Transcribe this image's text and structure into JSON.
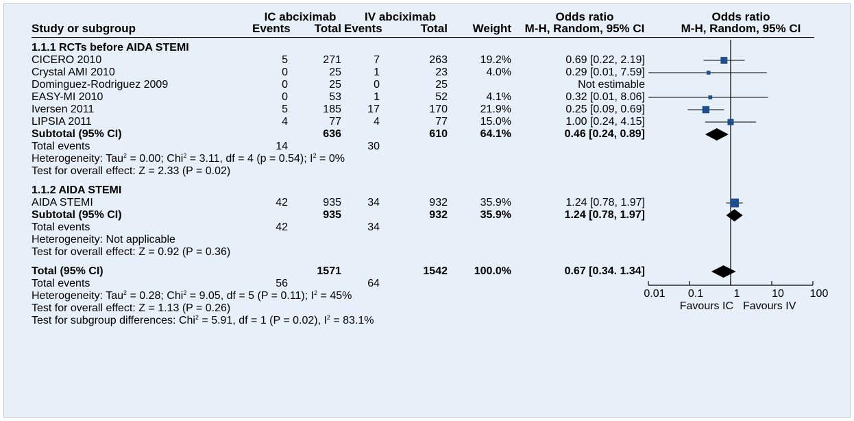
{
  "header": {
    "col_study": "Study or subgroup",
    "group_ic": "IC abciximab",
    "group_iv": "IV abciximab",
    "events": "Events",
    "total": "Total",
    "weight": "Weight",
    "or_num_title": "Odds ratio",
    "or_num_method": "M-H, Random, 95% CI",
    "or_plot_title": "Odds ratio",
    "or_plot_method": "M-H, Random, 95% CI"
  },
  "subgroups": [
    {
      "title": "1.1.1 RCTs before AIDA STEMI",
      "studies": [
        {
          "name": "CICERO 2010",
          "ic_events": "5",
          "ic_total": "271",
          "iv_events": "7",
          "iv_total": "263",
          "weight": "19.2%",
          "ci_text": "0.69 [0.22, 2.19]"
        },
        {
          "name": "Crystal AMI 2010",
          "ic_events": "0",
          "ic_total": "25",
          "iv_events": "1",
          "iv_total": "23",
          "weight": "4.0%",
          "ci_text": "0.29 [0.01, 7.59]"
        },
        {
          "name": "Dominguez-Rodriguez 2009",
          "ic_events": "0",
          "ic_total": "25",
          "iv_events": "0",
          "iv_total": "25",
          "weight": "",
          "ci_text": "Not estimable"
        },
        {
          "name": "EASY-MI 2010",
          "ic_events": "0",
          "ic_total": "53",
          "iv_events": "1",
          "iv_total": "52",
          "weight": "4.1%",
          "ci_text": "0.32 [0.01, 8.06]"
        },
        {
          "name": "Iversen 2011",
          "ic_events": "5",
          "ic_total": "185",
          "iv_events": "17",
          "iv_total": "170",
          "weight": "21.9%",
          "ci_text": "0.25 [0.09, 0.69]"
        },
        {
          "name": "LIPSIA 2011",
          "ic_events": "4",
          "ic_total": "77",
          "iv_events": "4",
          "iv_total": "77",
          "weight": "15.0%",
          "ci_text": "1.00 [0.24, 4.15]"
        }
      ],
      "subtotal": {
        "label": "Subtotal (95% CI)",
        "ic_total": "636",
        "iv_total": "610",
        "weight": "64.1%",
        "ci_text": "0.46 [0.24, 0.89]"
      },
      "total_events": {
        "label": "Total events",
        "ic": "14",
        "iv": "30"
      },
      "heterogeneity": {
        "pre": "Heterogeneity: Tau",
        "tau": "2",
        "mid1": " = 0.00; Chi",
        "chi": "2",
        "mid2": " = 3.11, df = 4 (p = 0.54); I",
        "i": "2",
        "post": " = 0%"
      },
      "overall_effect": "Test for overall effect: Z = 2.33 (P = 0.02)"
    },
    {
      "title": "1.1.2 AIDA STEMI",
      "studies": [
        {
          "name": "AIDA STEMI",
          "ic_events": "42",
          "ic_total": "935",
          "iv_events": "34",
          "iv_total": "932",
          "weight": "35.9%",
          "ci_text": "1.24 [0.78, 1.97]"
        }
      ],
      "subtotal": {
        "label": "Subtotal (95% CI)",
        "ic_total": "935",
        "iv_total": "932",
        "weight": "35.9%",
        "ci_text": "1.24 [0.78, 1.97]"
      },
      "total_events": {
        "label": "Total events",
        "ic": "42",
        "iv": "34"
      },
      "heterogeneity_text": "Heterogeneity: Not applicable",
      "overall_effect": "Test for overall effect: Z = 0.92 (P = 0.36)"
    }
  ],
  "total": {
    "label": "Total (95% CI)",
    "ic_total": "1571",
    "iv_total": "1542",
    "weight": "100.0%",
    "ci_text": "0.67 [0.34. 1.34]",
    "total_events": {
      "label": "Total events",
      "ic": "56",
      "iv": "64"
    },
    "heterogeneity": {
      "pre": "Heterogeneity: Tau",
      "tau": "2",
      "mid1": " = 0.28; Chi",
      "chi": "2",
      "mid2": " = 9.05, df = 5 (P = 0.11); I",
      "i": "2",
      "post": " = 45%"
    },
    "overall_effect": "Test for overall effect: Z = 1.13 (P = 0.26)",
    "subgroup_diff": {
      "pre": "Test for subgroup differences: Chi",
      "chi": "2",
      "mid": " = 5.91, df = 1 (P = 0.02), I",
      "i": "2",
      "post": " = 83.1%"
    }
  },
  "axis": {
    "ticks": [
      "0.01",
      "0.1",
      "1",
      "10",
      "100"
    ],
    "favours_left": "Favours IC",
    "favours_right": "Favours IV"
  },
  "chart_data": {
    "type": "forest",
    "scale": "log",
    "xlim": [
      0.01,
      100
    ],
    "reference_line": 1,
    "marker_color": "#1f4e8c",
    "studies": [
      {
        "name": "CICERO 2010",
        "or": 0.69,
        "lower": 0.22,
        "upper": 2.19,
        "weight": 19.2
      },
      {
        "name": "Crystal AMI 2010",
        "or": 0.29,
        "lower": 0.01,
        "upper": 7.59,
        "weight": 4.0
      },
      {
        "name": "Dominguez-Rodriguez 2009",
        "or": null,
        "lower": null,
        "upper": null,
        "weight": null
      },
      {
        "name": "EASY-MI 2010",
        "or": 0.32,
        "lower": 0.01,
        "upper": 8.06,
        "weight": 4.1
      },
      {
        "name": "Iversen 2011",
        "or": 0.25,
        "lower": 0.09,
        "upper": 0.69,
        "weight": 21.9
      },
      {
        "name": "LIPSIA 2011",
        "or": 1.0,
        "lower": 0.24,
        "upper": 4.15,
        "weight": 15.0
      },
      {
        "name": "AIDA STEMI",
        "or": 1.24,
        "lower": 0.78,
        "upper": 1.97,
        "weight": 35.9
      }
    ],
    "diamonds": [
      {
        "name": "Subtotal 1.1.1",
        "or": 0.46,
        "lower": 0.24,
        "upper": 0.89
      },
      {
        "name": "Subtotal 1.1.2",
        "or": 1.24,
        "lower": 0.78,
        "upper": 1.97
      },
      {
        "name": "Total",
        "or": 0.67,
        "lower": 0.34,
        "upper": 1.34
      }
    ]
  }
}
